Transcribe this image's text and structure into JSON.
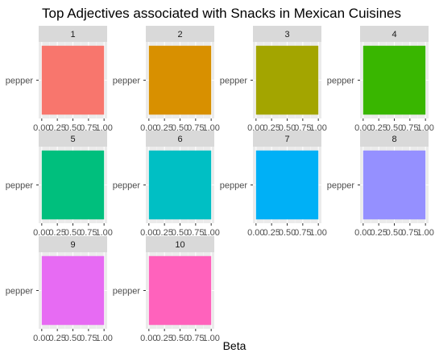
{
  "chart_data": {
    "type": "bar",
    "title": "Top Adjectives associated with Snacks in Mexican Cuisines",
    "xlabel": "Beta",
    "ylabel": "",
    "xlim": [
      0,
      1
    ],
    "x_ticks": [
      "0.00",
      "0.25",
      "0.50",
      "0.75",
      "1.00"
    ],
    "grid": true,
    "panels": [
      {
        "facet": "1",
        "categories": [
          "pepper"
        ],
        "values": [
          1.0
        ],
        "color": "#F8766D"
      },
      {
        "facet": "2",
        "categories": [
          "pepper"
        ],
        "values": [
          1.0
        ],
        "color": "#D89000"
      },
      {
        "facet": "3",
        "categories": [
          "pepper"
        ],
        "values": [
          1.0
        ],
        "color": "#A3A500"
      },
      {
        "facet": "4",
        "categories": [
          "pepper"
        ],
        "values": [
          1.0
        ],
        "color": "#39B600"
      },
      {
        "facet": "5",
        "categories": [
          "pepper"
        ],
        "values": [
          1.0
        ],
        "color": "#00BF7D"
      },
      {
        "facet": "6",
        "categories": [
          "pepper"
        ],
        "values": [
          1.0
        ],
        "color": "#00BFC4"
      },
      {
        "facet": "7",
        "categories": [
          "pepper"
        ],
        "values": [
          1.0
        ],
        "color": "#00B0F6"
      },
      {
        "facet": "8",
        "categories": [
          "pepper"
        ],
        "values": [
          1.0
        ],
        "color": "#9590FF"
      },
      {
        "facet": "9",
        "categories": [
          "pepper"
        ],
        "values": [
          1.0
        ],
        "color": "#E76BF3"
      },
      {
        "facet": "10",
        "categories": [
          "pepper"
        ],
        "values": [
          1.0
        ],
        "color": "#FF62BC"
      }
    ]
  }
}
